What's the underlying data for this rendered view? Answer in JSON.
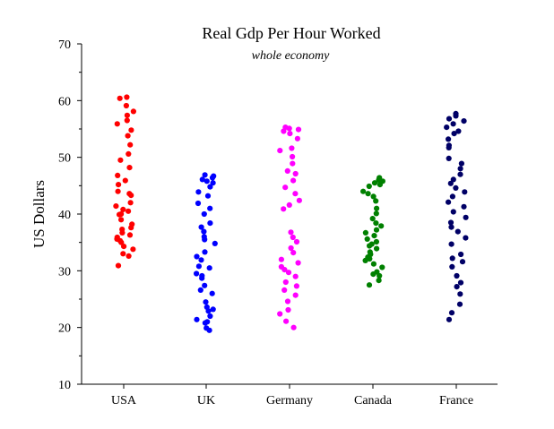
{
  "chart_data": {
    "type": "scatter",
    "title": "Real Gdp Per Hour Worked",
    "subtitle": "whole economy",
    "xlabel": "",
    "ylabel": "US Dollars",
    "ylim": [
      10,
      70
    ],
    "yticks": [
      "10",
      "20",
      "30",
      "40",
      "50",
      "60",
      "70"
    ],
    "grid": false,
    "categories": [
      "USA",
      "UK",
      "Germany",
      "Canada",
      "France"
    ],
    "series": [
      {
        "category": "USA",
        "color": "#ff0000",
        "values": [
          60.6,
          60.4,
          59.1,
          58.1,
          57.4,
          56.5,
          55.9,
          54.8,
          53.8,
          52.2,
          50.6,
          49.5,
          48.2,
          46.8,
          45.9,
          45.2,
          44.0,
          43.6,
          43.3,
          42.0,
          41.4,
          40.8,
          40.5,
          40.0,
          39.9,
          39.0,
          38.2,
          37.6,
          37.3,
          36.7,
          36.3,
          35.9,
          35.6,
          35.3,
          35.0,
          34.3,
          33.8,
          33.0,
          32.6,
          30.9
        ]
      },
      {
        "category": "UK",
        "color": "#0000ff",
        "values": [
          46.9,
          46.7,
          46.4,
          46.1,
          45.8,
          45.5,
          44.8,
          43.9,
          43.2,
          41.9,
          41.0,
          40.0,
          38.4,
          37.7,
          36.9,
          36.0,
          35.5,
          34.8,
          33.3,
          32.5,
          31.9,
          30.8,
          30.5,
          29.5,
          29.1,
          28.7,
          27.4,
          26.6,
          26.0,
          24.5,
          23.6,
          23.2,
          22.9,
          22.0,
          21.4,
          21.0,
          20.8,
          19.9,
          19.5
        ]
      },
      {
        "category": "Germany",
        "color": "#ff00ff",
        "values": [
          55.3,
          55.1,
          54.9,
          54.6,
          54.2,
          53.3,
          51.6,
          51.2,
          50.1,
          48.9,
          47.6,
          47.1,
          45.9,
          44.7,
          43.6,
          42.4,
          41.6,
          40.9,
          36.8,
          35.9,
          35.1,
          34.0,
          33.2,
          32.0,
          31.4,
          30.7,
          30.2,
          29.7,
          29.0,
          28.0,
          27.3,
          26.6,
          25.7,
          24.6,
          23.1,
          22.4,
          21.1,
          20.0
        ]
      },
      {
        "category": "Canada",
        "color": "#008000",
        "values": [
          46.4,
          46.0,
          45.8,
          45.5,
          45.2,
          44.9,
          44.0,
          43.6,
          43.1,
          42.3,
          41.0,
          40.1,
          39.2,
          38.4,
          37.9,
          37.2,
          36.7,
          36.2,
          35.6,
          35.1,
          34.7,
          34.4,
          33.9,
          33.3,
          32.9,
          32.4,
          32.1,
          31.8,
          31.2,
          30.6,
          29.8,
          29.4,
          29.1,
          28.3,
          27.5
        ]
      },
      {
        "category": "France",
        "color": "#000066",
        "values": [
          57.7,
          57.3,
          56.8,
          56.4,
          55.9,
          55.3,
          54.6,
          54.2,
          53.2,
          52.1,
          51.7,
          49.8,
          48.9,
          48.0,
          47.0,
          46.1,
          45.4,
          44.6,
          43.9,
          43.1,
          42.1,
          41.3,
          40.4,
          39.4,
          38.5,
          37.7,
          36.9,
          35.8,
          34.7,
          32.9,
          32.2,
          31.6,
          30.7,
          29.1,
          27.9,
          27.2,
          25.9,
          24.1,
          22.6,
          21.4
        ]
      }
    ]
  }
}
